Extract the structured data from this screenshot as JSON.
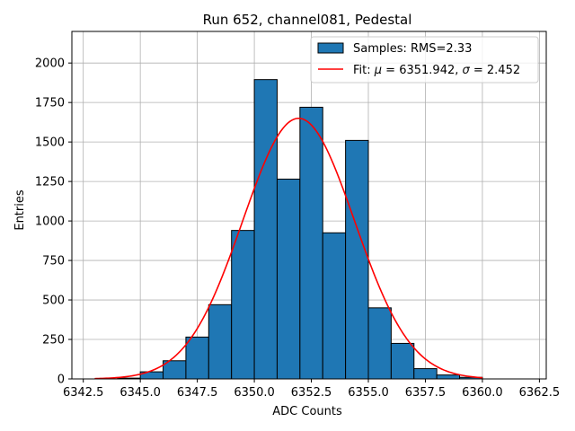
{
  "chart_data": {
    "type": "bar",
    "title": "Run 652, channel081, Pedestal",
    "xlabel": "ADC Counts",
    "ylabel": "Entries",
    "xlim": [
      6342.0,
      6362.8
    ],
    "ylim": [
      0,
      2200
    ],
    "xticks": [
      6342.5,
      6345.0,
      6347.5,
      6350.0,
      6352.5,
      6355.0,
      6357.5,
      6360.0,
      6362.5
    ],
    "xtick_labels": [
      "6342.5",
      "6345.0",
      "6347.5",
      "6350.0",
      "6352.5",
      "6355.0",
      "6357.5",
      "6360.0",
      "6362.5"
    ],
    "yticks": [
      0,
      250,
      500,
      750,
      1000,
      1250,
      1500,
      1750,
      2000
    ],
    "ytick_labels": [
      "0",
      "250",
      "500",
      "750",
      "1000",
      "1250",
      "1500",
      "1750",
      "2000"
    ],
    "grid": true,
    "legend_position": "top-right",
    "bin_edges": [
      6343,
      6344,
      6345,
      6346,
      6347,
      6348,
      6349,
      6350,
      6351,
      6352,
      6353,
      6354,
      6355,
      6356,
      6357,
      6358,
      6359,
      6360
    ],
    "series": [
      {
        "name": "Samples: RMS=2.33",
        "kind": "histogram",
        "color": "#1f77b4",
        "edgecolor": "#000000",
        "values": [
          0,
          5,
          45,
          115,
          265,
          470,
          940,
          1895,
          1265,
          1720,
          925,
          1510,
          450,
          225,
          65,
          25,
          10
        ]
      },
      {
        "name_prefix": "Fit: ",
        "name_mu": "μ",
        "name_mid": " = 6351.942, ",
        "name_sigma": "σ",
        "name_suffix": " = 2.452",
        "kind": "gaussian-fit",
        "color": "#ff0000",
        "mu": 6351.942,
        "sigma": 2.452,
        "amplitude": 1650,
        "x_range": [
          6343,
          6360
        ]
      }
    ]
  }
}
